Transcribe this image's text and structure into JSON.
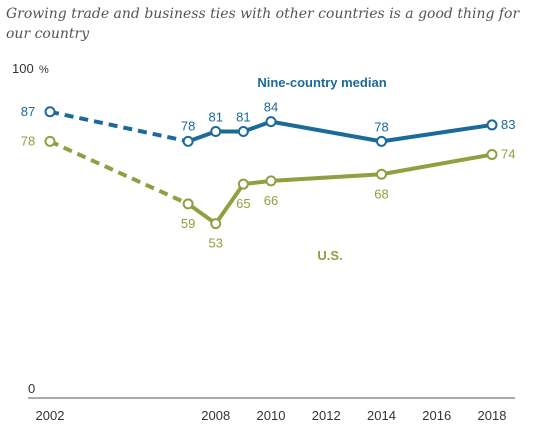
{
  "chart_data": {
    "type": "line",
    "title": "Growing trade and business ties with other countries is a good thing for our country",
    "xlabel": "",
    "ylabel": "",
    "xlim": [
      2002,
      2018
    ],
    "ylim": [
      0,
      100
    ],
    "y_ticks": [
      {
        "value": 100,
        "label": "100"
      },
      {
        "value": 0,
        "label": "0"
      }
    ],
    "y_unit_label": "%",
    "x_ticks": [
      "2002",
      "2008",
      "2010",
      "2012",
      "2014",
      "2016",
      "2018"
    ],
    "x_tick_values": [
      2002,
      2008,
      2010,
      2012,
      2014,
      2016,
      2018
    ],
    "grid": false,
    "series": [
      {
        "name": "Nine-country median",
        "color": "#1a6a9a",
        "x": [
          2002,
          2007,
          2008,
          2009,
          2010,
          2014,
          2018
        ],
        "values": [
          87,
          78,
          81,
          81,
          84,
          78,
          83
        ],
        "labels": [
          "87",
          "78",
          "81",
          "81",
          "84",
          "78",
          "83"
        ],
        "dashed_segments": [
          [
            0,
            1
          ]
        ]
      },
      {
        "name": "U.S.",
        "color": "#8ea03f",
        "x": [
          2002,
          2007,
          2008,
          2009,
          2010,
          2014,
          2018
        ],
        "values": [
          78,
          59,
          53,
          65,
          66,
          68,
          74
        ],
        "labels": [
          "78",
          "59",
          "53",
          "65",
          "66",
          "68",
          "74"
        ],
        "dashed_segments": [
          [
            0,
            1
          ]
        ]
      }
    ]
  }
}
